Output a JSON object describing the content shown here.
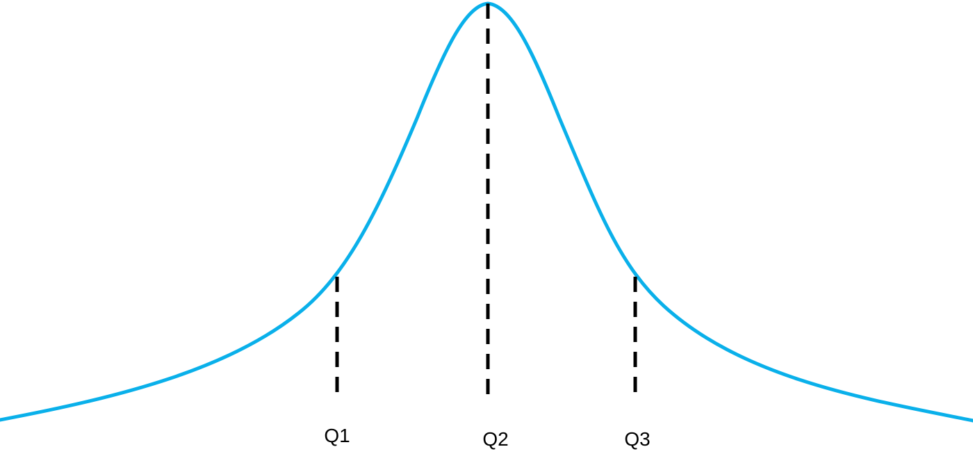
{
  "colors": {
    "curve": "#0ab0ea",
    "marker_lines": "#000000",
    "labels": "#000000",
    "background": "#ffffff"
  },
  "markers": [
    {
      "id": "q1",
      "label": "Q1"
    },
    {
      "id": "q2",
      "label": "Q2"
    },
    {
      "id": "q3",
      "label": "Q3"
    }
  ]
}
